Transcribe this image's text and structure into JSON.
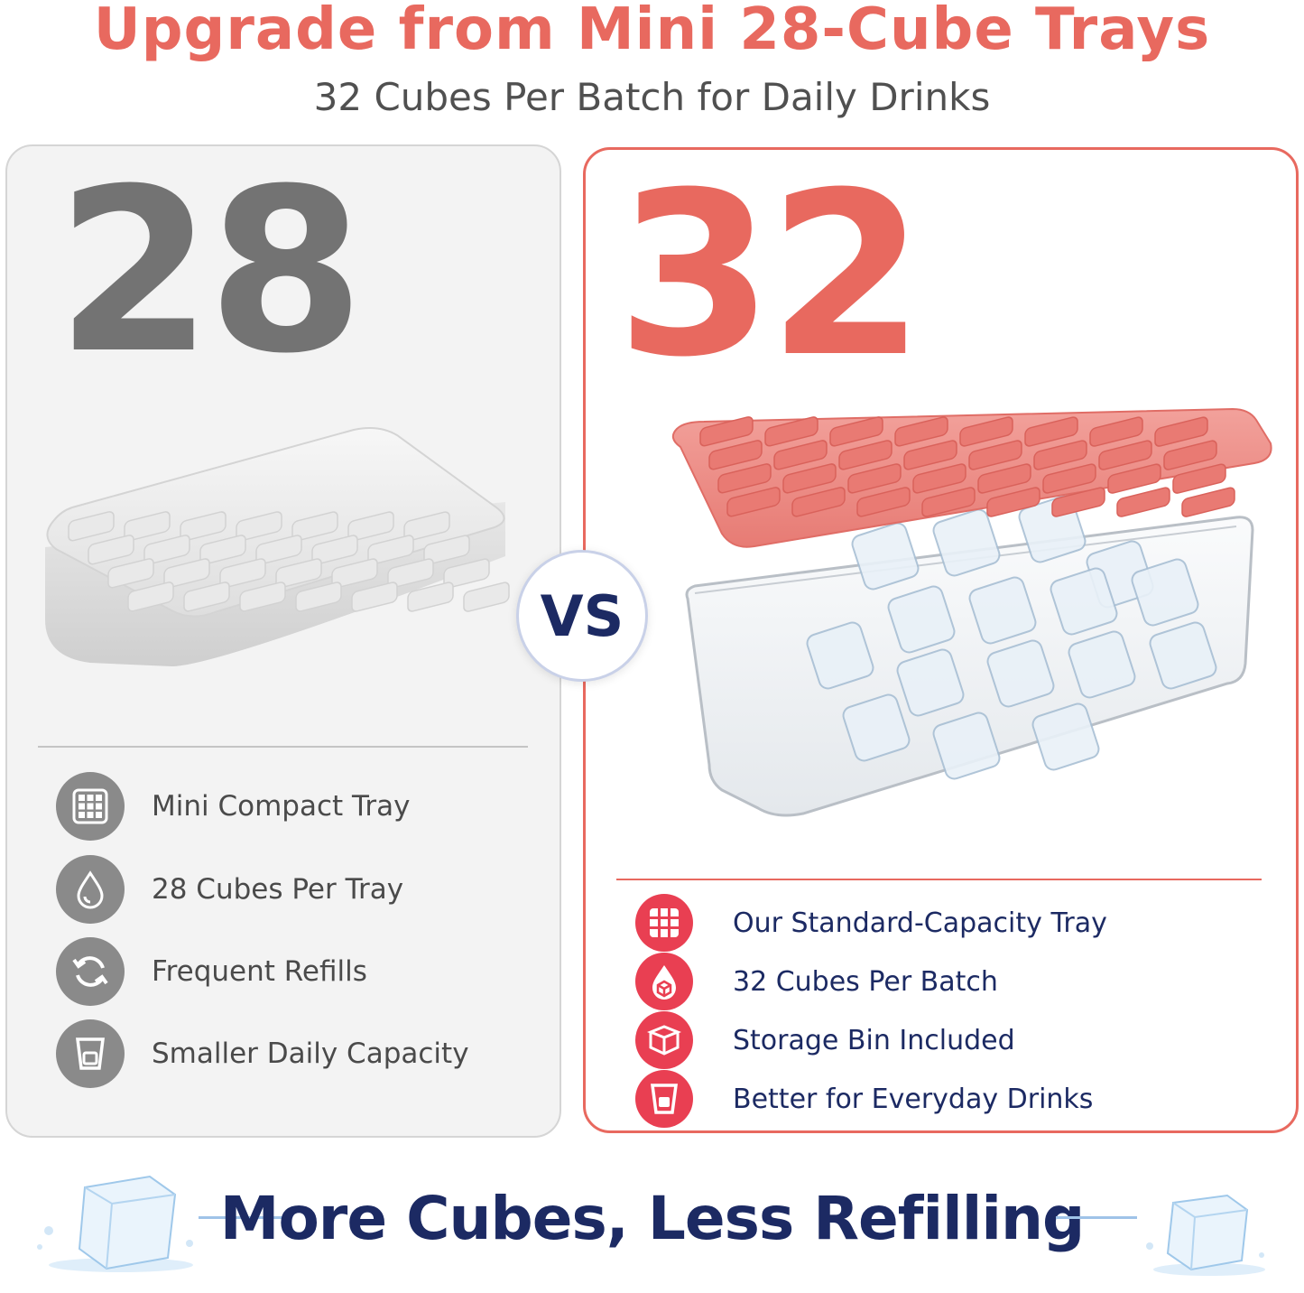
{
  "headline": "Upgrade from Mini 28-Cube Trays",
  "subheadline": "32 Cubes Per Batch for Daily Drinks",
  "left_panel": {
    "number": "28",
    "features": [
      {
        "icon": "grid-tray-icon",
        "label": "Mini Compact Tray"
      },
      {
        "icon": "water-drop-icon",
        "label": "28 Cubes Per Tray"
      },
      {
        "icon": "refresh-cycle-icon",
        "label": "Frequent Refills"
      },
      {
        "icon": "cup-icon",
        "label": "Smaller Daily Capacity"
      }
    ]
  },
  "vs_label": "VS",
  "right_panel": {
    "number": "32",
    "features": [
      {
        "icon": "grid-tray-icon",
        "label": "Our Standard-Capacity Tray"
      },
      {
        "icon": "drop-cube-icon",
        "label": "32 Cubes Per Batch"
      },
      {
        "icon": "storage-bin-icon",
        "label": "Storage Bin Included"
      },
      {
        "icon": "cup-icon",
        "label": "Better for Everyday Drinks"
      }
    ]
  },
  "tagline": "More Cubes, Less Refilling",
  "colors": {
    "accent": "#e8695f",
    "navy": "#1c2a63",
    "gray_number": "#737373",
    "gray_badge": "#8a8a8a",
    "red_badge": "#e93f52",
    "tray_pink": "#ee8a84",
    "tray_gray": "#e8e8e8"
  }
}
